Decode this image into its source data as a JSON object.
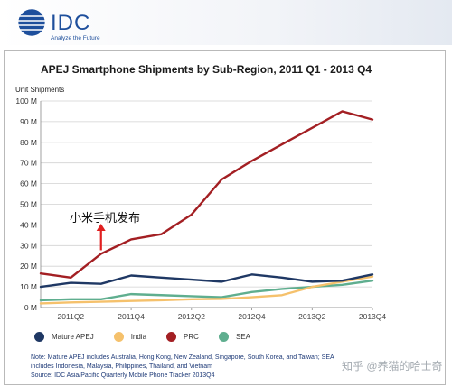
{
  "brand": {
    "name": "IDC",
    "tagline": "Analyze the Future"
  },
  "chart_data": {
    "type": "line",
    "title": "APEJ Smartphone Shipments by Sub-Region, 2011 Q1 - 2013 Q4",
    "ylabel": "Unit Shipments",
    "xlabel": "",
    "x": [
      "2011Q1",
      "2011Q2",
      "2011Q3",
      "2011Q4",
      "2012Q1",
      "2012Q2",
      "2012Q3",
      "2012Q4",
      "2013Q1",
      "2013Q2",
      "2013Q3",
      "2013Q4"
    ],
    "x_tick_labels": [
      "2011Q2",
      "2011Q4",
      "2012Q2",
      "2012Q4",
      "2013Q2",
      "2013Q4"
    ],
    "y_tick_labels": [
      "0 M",
      "10 M",
      "20 M",
      "30 M",
      "40 M",
      "50 M",
      "60 M",
      "70 M",
      "80 M",
      "90 M",
      "100 M"
    ],
    "ylim": [
      0,
      100
    ],
    "grid": true,
    "legend_position": "bottom",
    "series": [
      {
        "name": "Mature APEJ",
        "color": "#1f3864",
        "values": [
          10,
          12,
          11.5,
          15.5,
          14.5,
          13.5,
          12.5,
          16,
          14.5,
          12.5,
          13,
          16
        ]
      },
      {
        "name": "India",
        "color": "#f5c16c",
        "values": [
          2,
          2.5,
          2.8,
          3.2,
          3.5,
          4,
          4.2,
          5,
          6,
          10,
          12.5,
          15
        ]
      },
      {
        "name": "PRC",
        "color": "#a31f23",
        "values": [
          16.5,
          14.5,
          26,
          33,
          35.5,
          45,
          62,
          71,
          79,
          87,
          95,
          91
        ]
      },
      {
        "name": "SEA",
        "color": "#5fae8f",
        "values": [
          3.5,
          4,
          4,
          6.5,
          6,
          5.5,
          5,
          7.5,
          9,
          10,
          11,
          13
        ]
      }
    ],
    "annotations": [
      {
        "text": "小米手机发布",
        "x": "2011Q3",
        "arrow": true
      }
    ]
  },
  "note": {
    "line1": "Note: Mature APEJ includes Australia, Hong Kong, New Zealand, Singapore, South Korea, and Taiwan; SEA",
    "line2": "includes Indonesia, Malaysia, Philippines, Thailand, and Vietnam",
    "line3": "Source: IDC Asia/Pacific Quarterly Mobile Phone Tracker 2013Q4"
  },
  "watermark": "知乎 @养猫的哈士奇"
}
